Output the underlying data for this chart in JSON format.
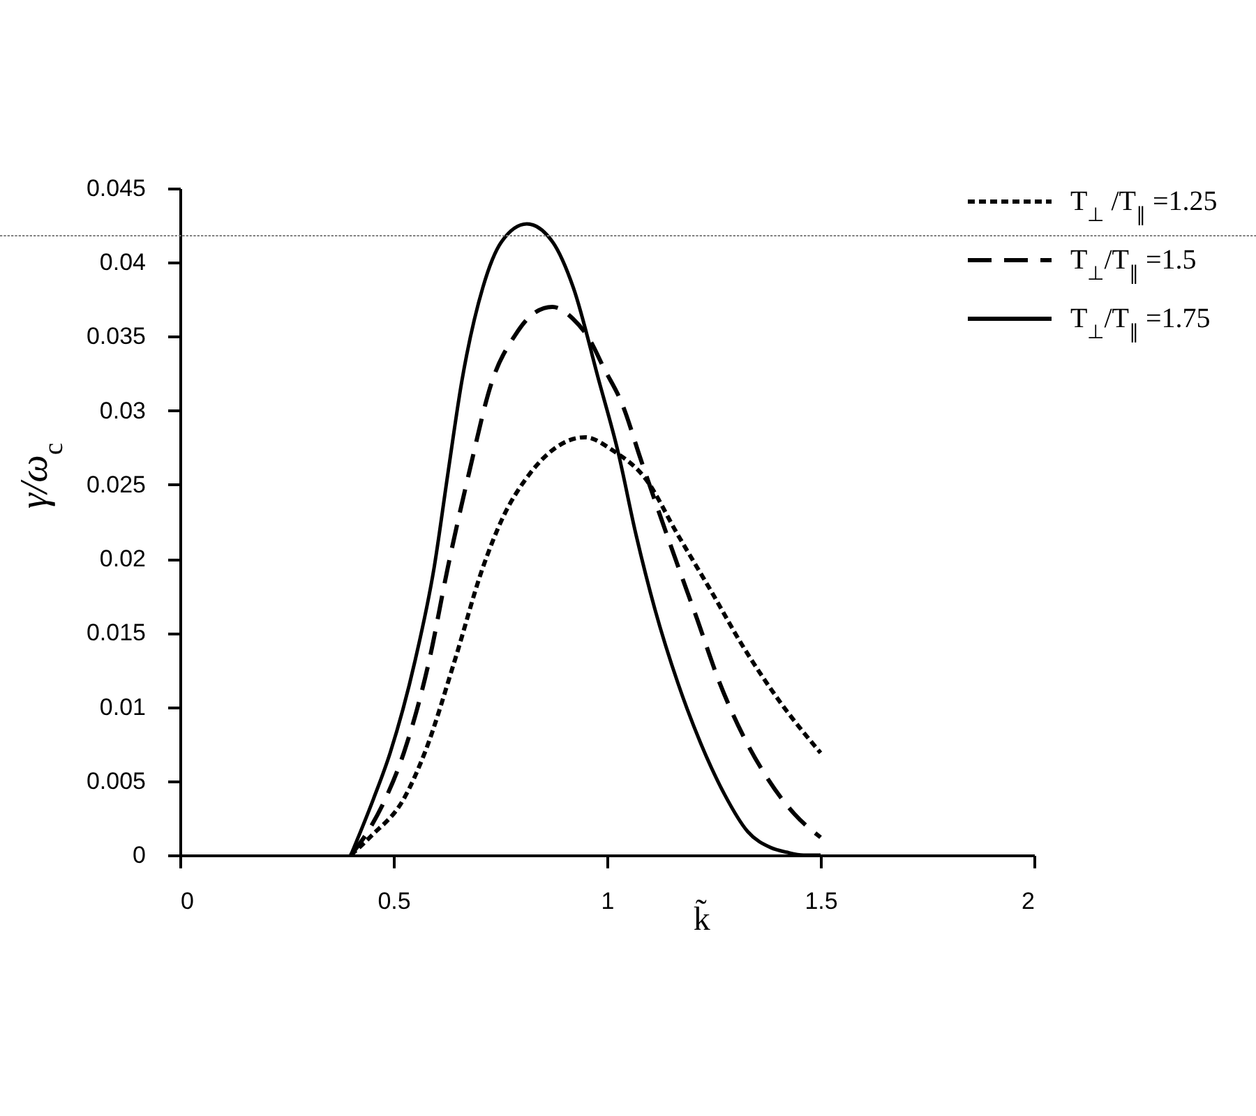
{
  "chart_data": {
    "type": "line",
    "xlabel": "k̃",
    "ylabel": "γ/ω$_{c}$",
    "xlim": [
      0,
      2
    ],
    "xticks": [
      0,
      0.5,
      1,
      1.5,
      2
    ],
    "ylim": [
      0,
      0.045
    ],
    "yticks": [
      0,
      0.005,
      0.01,
      0.015,
      0.02,
      0.025,
      0.03,
      0.035,
      0.04,
      0.045
    ],
    "legend": "top right",
    "ref_lines": [
      {
        "axis": "y",
        "value": 0.0418,
        "color": "#808080",
        "line_style": "dotted"
      }
    ],
    "series": [
      {
        "name": "T$_{⊥}$ /T$_{∥}$ =1.25",
        "color": "#000000",
        "line_style": "dotted",
        "x": [
          0.4,
          0.448,
          0.524,
          0.573,
          0.644,
          0.709,
          0.753,
          0.818,
          0.88,
          0.948,
          1.014,
          1.09,
          1.166,
          1.242,
          1.318,
          1.406,
          1.5
        ],
        "values": [
          0,
          0.0013,
          0.0038,
          0.0069,
          0.0132,
          0.0194,
          0.0226,
          0.0257,
          0.0275,
          0.0282,
          0.0273,
          0.0254,
          0.0216,
          0.0179,
          0.0141,
          0.0103,
          0.0069
        ]
      },
      {
        "name": "T$_{⊥}$/T$_{∥}$ =1.5",
        "color": "#000000",
        "line_style": "dashed",
        "x": [
          0.4,
          0.44,
          0.481,
          0.524,
          0.584,
          0.627,
          0.676,
          0.731,
          0.785,
          0.83,
          0.872,
          0.92,
          0.959,
          0.992,
          1.036,
          1.079,
          1.155,
          1.21,
          1.264,
          1.318,
          1.373,
          1.438,
          1.5
        ],
        "values": [
          0,
          0.0016,
          0.0038,
          0.0069,
          0.0132,
          0.0194,
          0.0257,
          0.032,
          0.0351,
          0.0366,
          0.037,
          0.0362,
          0.0348,
          0.0329,
          0.0304,
          0.0267,
          0.0204,
          0.016,
          0.0116,
          0.0081,
          0.0053,
          0.0028,
          0.0012
        ]
      },
      {
        "name": "T$_{⊥}$/T$_{∥}$ =1.75",
        "color": "#000000",
        "line_style": "solid",
        "x": [
          0.4,
          0.453,
          0.492,
          0.551,
          0.595,
          0.627,
          0.66,
          0.709,
          0.753,
          0.812,
          0.872,
          0.921,
          0.981,
          1.025,
          1.068,
          1.112,
          1.166,
          1.22,
          1.275,
          1.329,
          1.384,
          1.42,
          1.46,
          1.5
        ],
        "values": [
          0,
          0.0038,
          0.0069,
          0.0132,
          0.0194,
          0.0257,
          0.032,
          0.0383,
          0.0414,
          0.0426,
          0.0414,
          0.0383,
          0.032,
          0.0273,
          0.0216,
          0.0166,
          0.0116,
          0.0075,
          0.0041,
          0.0016,
          0.0005,
          0.0002,
          0,
          0
        ]
      }
    ]
  }
}
